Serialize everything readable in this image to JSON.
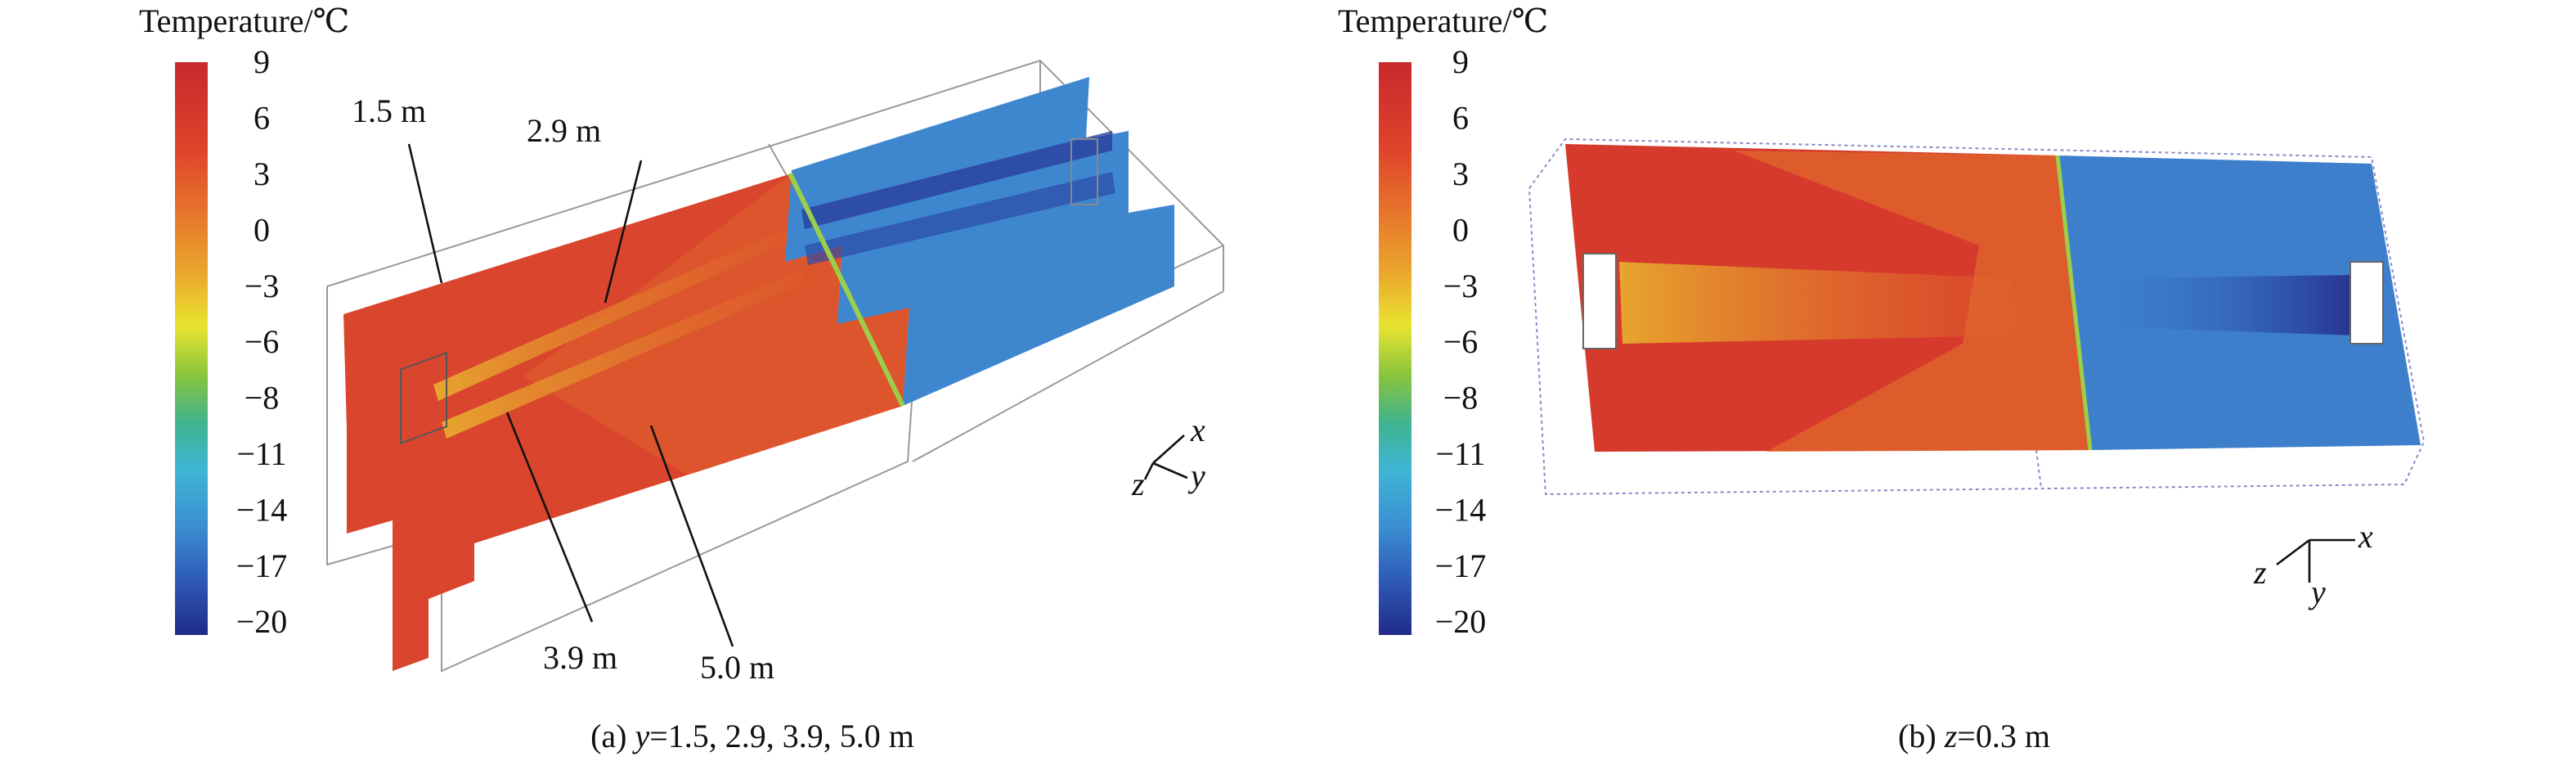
{
  "panels": [
    {
      "colorbar": {
        "title": "Temperature/℃",
        "ticks": [
          "9",
          "6",
          "3",
          "0",
          "−3",
          "−6",
          "−8",
          "−11",
          "−14",
          "−17",
          "−20"
        ]
      },
      "annotations": [
        "1.5 m",
        "2.9 m",
        "3.9 m",
        "5.0 m"
      ],
      "axes": [
        "x",
        "y",
        "z"
      ],
      "caption": {
        "label": "(a)",
        "variable": "y",
        "text": "=1.5, 2.9, 3.9, 5.0 m"
      }
    },
    {
      "colorbar": {
        "title": "Temperature/℃",
        "ticks": [
          "9",
          "6",
          "3",
          "0",
          "−3",
          "−6",
          "−8",
          "−11",
          "−14",
          "−17",
          "−20"
        ]
      },
      "axes": [
        "x",
        "y",
        "z"
      ],
      "caption": {
        "label": "(b)",
        "variable": "z",
        "text": "=0.3 m"
      }
    }
  ]
}
